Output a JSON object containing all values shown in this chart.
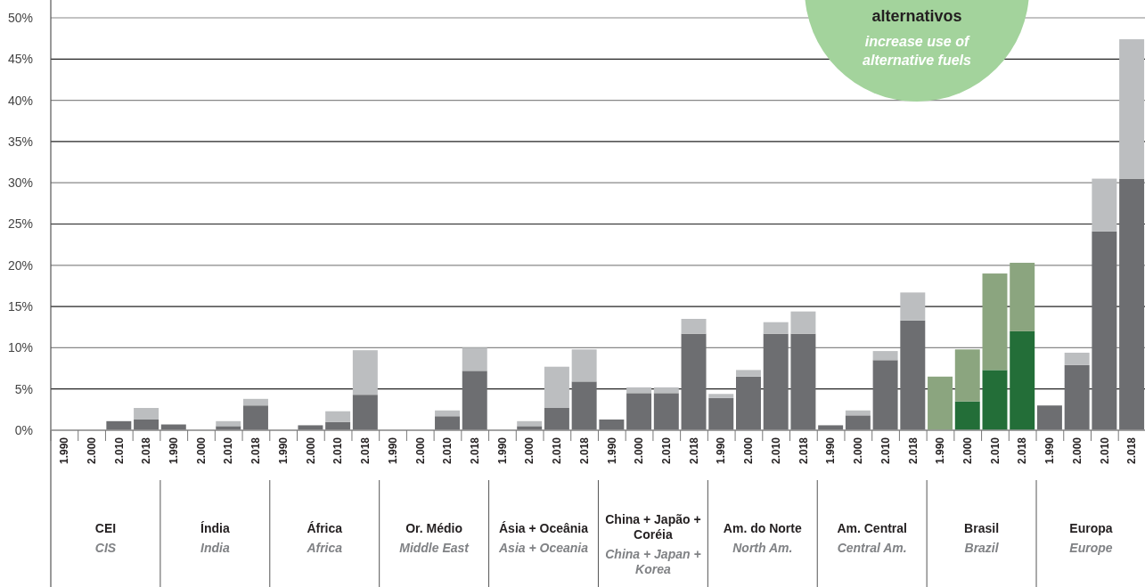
{
  "chart_data": {
    "type": "bar",
    "stacked": true,
    "categories": [
      "1.990",
      "2.000",
      "2.010",
      "2.018",
      "1.990",
      "2.000",
      "2.010",
      "2.018",
      "1.990",
      "2.000",
      "2.010",
      "2.018",
      "1.990",
      "2.000",
      "2.010",
      "2.018",
      "1.990",
      "2.000",
      "2.010",
      "2.018",
      "1.990",
      "2.000",
      "2.010",
      "2.018",
      "1.990",
      "2.000",
      "2.010",
      "2.018",
      "1.990",
      "2.000",
      "2.010",
      "2.018",
      "1.990",
      "2.000",
      "2.010",
      "2.018",
      "1.990",
      "2.000",
      "2.010",
      "2.018"
    ],
    "series": [
      {
        "colors": [
          "#6d6e71",
          "#6d6e71",
          "#6d6e71",
          "#6d6e71",
          "#6d6e71",
          "#6d6e71",
          "#6d6e71",
          "#6d6e71",
          "#6d6e71",
          "#6d6e71",
          "#6d6e71",
          "#6d6e71",
          "#6d6e71",
          "#6d6e71",
          "#6d6e71",
          "#6d6e71",
          "#6d6e71",
          "#6d6e71",
          "#6d6e71",
          "#6d6e71",
          "#6d6e71",
          "#6d6e71",
          "#6d6e71",
          "#6d6e71",
          "#6d6e71",
          "#6d6e71",
          "#6d6e71",
          "#6d6e71",
          "#6d6e71",
          "#6d6e71",
          "#6d6e71",
          "#6d6e71",
          "#236e38",
          "#236e38",
          "#236e38",
          "#236e38",
          "#6d6e71",
          "#6d6e71",
          "#6d6e71",
          "#6d6e71"
        ],
        "values": [
          0,
          0,
          1.1,
          1.3,
          0.7,
          0,
          0.5,
          3.0,
          0,
          0.6,
          1.0,
          4.3,
          0,
          0,
          1.7,
          7.2,
          0,
          0.5,
          2.7,
          5.9,
          1.3,
          4.5,
          4.5,
          11.7,
          3.9,
          6.5,
          11.7,
          11.7,
          0.6,
          1.8,
          8.5,
          13.3,
          0,
          3.5,
          7.3,
          12.0,
          3.0,
          7.9,
          24.1,
          30.5
        ]
      },
      {
        "colors": [
          "#bcbec0",
          "#bcbec0",
          "#bcbec0",
          "#bcbec0",
          "#bcbec0",
          "#bcbec0",
          "#bcbec0",
          "#bcbec0",
          "#bcbec0",
          "#bcbec0",
          "#bcbec0",
          "#bcbec0",
          "#bcbec0",
          "#bcbec0",
          "#bcbec0",
          "#bcbec0",
          "#bcbec0",
          "#bcbec0",
          "#bcbec0",
          "#bcbec0",
          "#bcbec0",
          "#bcbec0",
          "#bcbec0",
          "#bcbec0",
          "#bcbec0",
          "#bcbec0",
          "#bcbec0",
          "#bcbec0",
          "#bcbec0",
          "#bcbec0",
          "#bcbec0",
          "#bcbec0",
          "#8ba57f",
          "#8ba57f",
          "#8ba57f",
          "#8ba57f",
          "#bcbec0",
          "#bcbec0",
          "#bcbec0",
          "#bcbec0"
        ],
        "values": [
          0,
          0,
          0,
          1.4,
          0,
          0,
          0.6,
          0.8,
          0,
          0,
          1.3,
          5.4,
          0,
          0,
          0.7,
          2.8,
          0,
          0.6,
          5.0,
          3.9,
          0,
          0.7,
          0.7,
          1.8,
          0.5,
          0.8,
          1.4,
          2.7,
          0,
          0.6,
          1.1,
          3.4,
          6.5,
          6.3,
          11.7,
          8.3,
          0,
          1.5,
          6.4,
          16.9
        ]
      }
    ],
    "ylim": [
      0,
      50
    ],
    "yticks": [
      {
        "value": 0,
        "label": "0%"
      },
      {
        "value": 5,
        "label": "5%"
      },
      {
        "value": 10,
        "label": "10%"
      },
      {
        "value": 15,
        "label": "15%"
      },
      {
        "value": 20,
        "label": "20%"
      },
      {
        "value": 25,
        "label": "25%"
      },
      {
        "value": 30,
        "label": "30%"
      },
      {
        "value": 35,
        "label": "35%"
      },
      {
        "value": 40,
        "label": "40%"
      },
      {
        "value": 45,
        "label": "45%"
      },
      {
        "value": 50,
        "label": "50%"
      }
    ],
    "grid": "y",
    "annotations": [
      "CEI",
      "CIS",
      "Índia",
      "India",
      "África",
      "Africa",
      "Or. Médio",
      "Middle East",
      "Ásia + Oceânia",
      "Asia + Oceania",
      "China + Japão + Coréia",
      "China + Japan + Korea",
      "Am. do Norte",
      "North Am.",
      "Am. Central",
      "Central Am.",
      "Brasil",
      "Brazil",
      "Europa",
      "Europe",
      "alternativos",
      "increase use of alternative fuels"
    ]
  }
}
